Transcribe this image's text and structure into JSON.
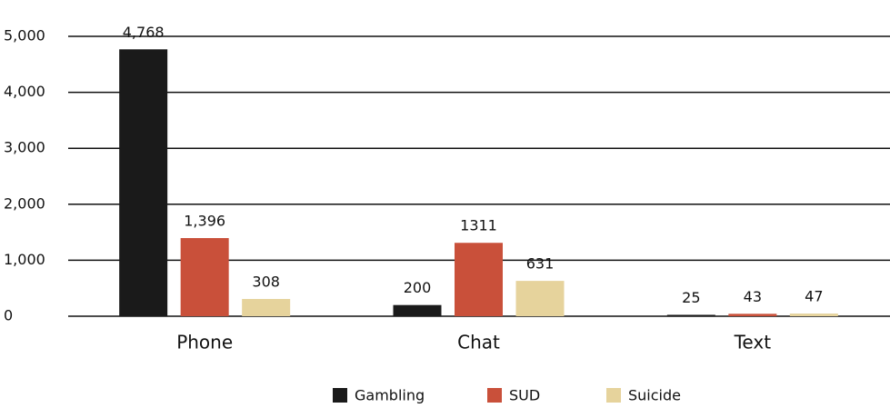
{
  "chart_data": {
    "type": "bar",
    "categories": [
      "Phone",
      "Chat",
      "Text"
    ],
    "series": [
      {
        "name": "Gambling",
        "color": "#1a1a1a",
        "values": [
          4768,
          200,
          25
        ],
        "value_labels": [
          "4,768",
          "200",
          "25"
        ]
      },
      {
        "name": "SUD",
        "color": "#c9503a",
        "values": [
          1396,
          1311,
          43
        ],
        "value_labels": [
          "1,396",
          "1311",
          "43"
        ]
      },
      {
        "name": "Suicide",
        "color": "#e6d39c",
        "values": [
          308,
          631,
          47
        ],
        "value_labels": [
          "308",
          "631",
          "47"
        ]
      }
    ],
    "ylim": [
      0,
      5000
    ],
    "yticks": [
      0,
      {
        "value": 1000,
        "label": "1,000"
      },
      {
        "value": 2000,
        "label": "2,000"
      },
      {
        "value": 3000,
        "label": "3,000"
      },
      {
        "value": 4000,
        "label": "4,000"
      },
      {
        "value": 5000,
        "label": "5,000"
      }
    ],
    "grid": true,
    "legend": "bottom"
  }
}
